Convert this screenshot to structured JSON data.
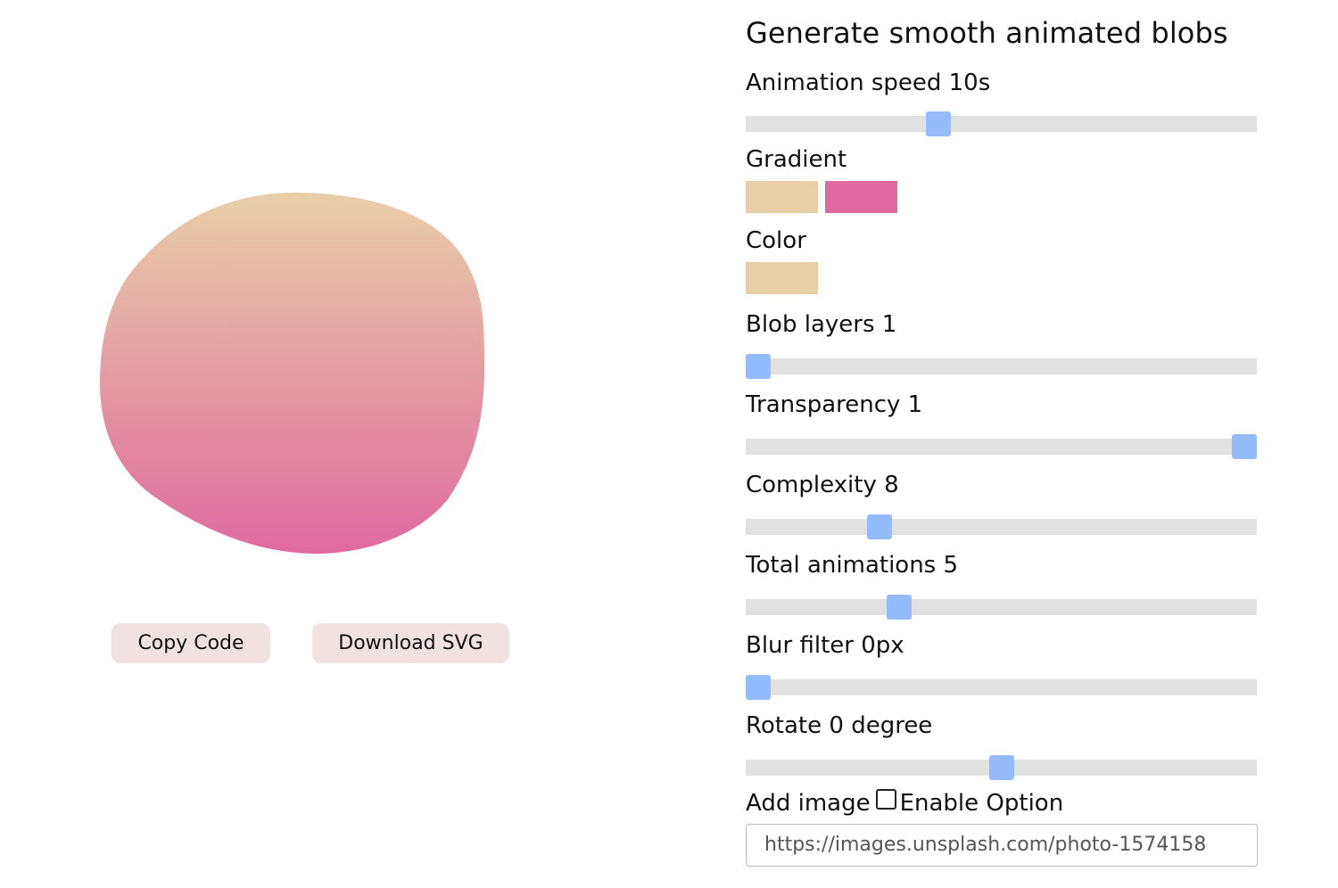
{
  "preview": {
    "gradient": {
      "start": "#e8cfa8",
      "end": "#e06a9f"
    },
    "buttons": {
      "copy": "Copy Code",
      "download": "Download SVG"
    }
  },
  "panel": {
    "title": "Generate smooth animated blobs",
    "animation_speed": {
      "label": "Animation speed 10s",
      "fraction": 0.37
    },
    "gradient": {
      "label": "Gradient",
      "colors": [
        "#e8cfa8",
        "#e06a9f"
      ]
    },
    "color": {
      "label": "Color",
      "value": "#e8cfa8"
    },
    "blob_layers": {
      "label": "Blob layers 1",
      "fraction": 0.0
    },
    "transparency": {
      "label": "Transparency 1",
      "fraction": 1.0
    },
    "complexity": {
      "label": "Complexity 8",
      "fraction": 0.25
    },
    "total_animations": {
      "label": "Total animations 5",
      "fraction": 0.29
    },
    "blur_filter": {
      "label": "Blur filter 0px",
      "fraction": 0.0
    },
    "rotate": {
      "label": "Rotate 0 degree",
      "fraction": 0.5
    },
    "add_image": {
      "label": "Add image",
      "checkbox_label": "Enable Option",
      "checked": false,
      "url": "https://images.unsplash.com/photo-1574158"
    },
    "slider_color": "#94bbfb",
    "track_color": "#e1e1e1"
  }
}
